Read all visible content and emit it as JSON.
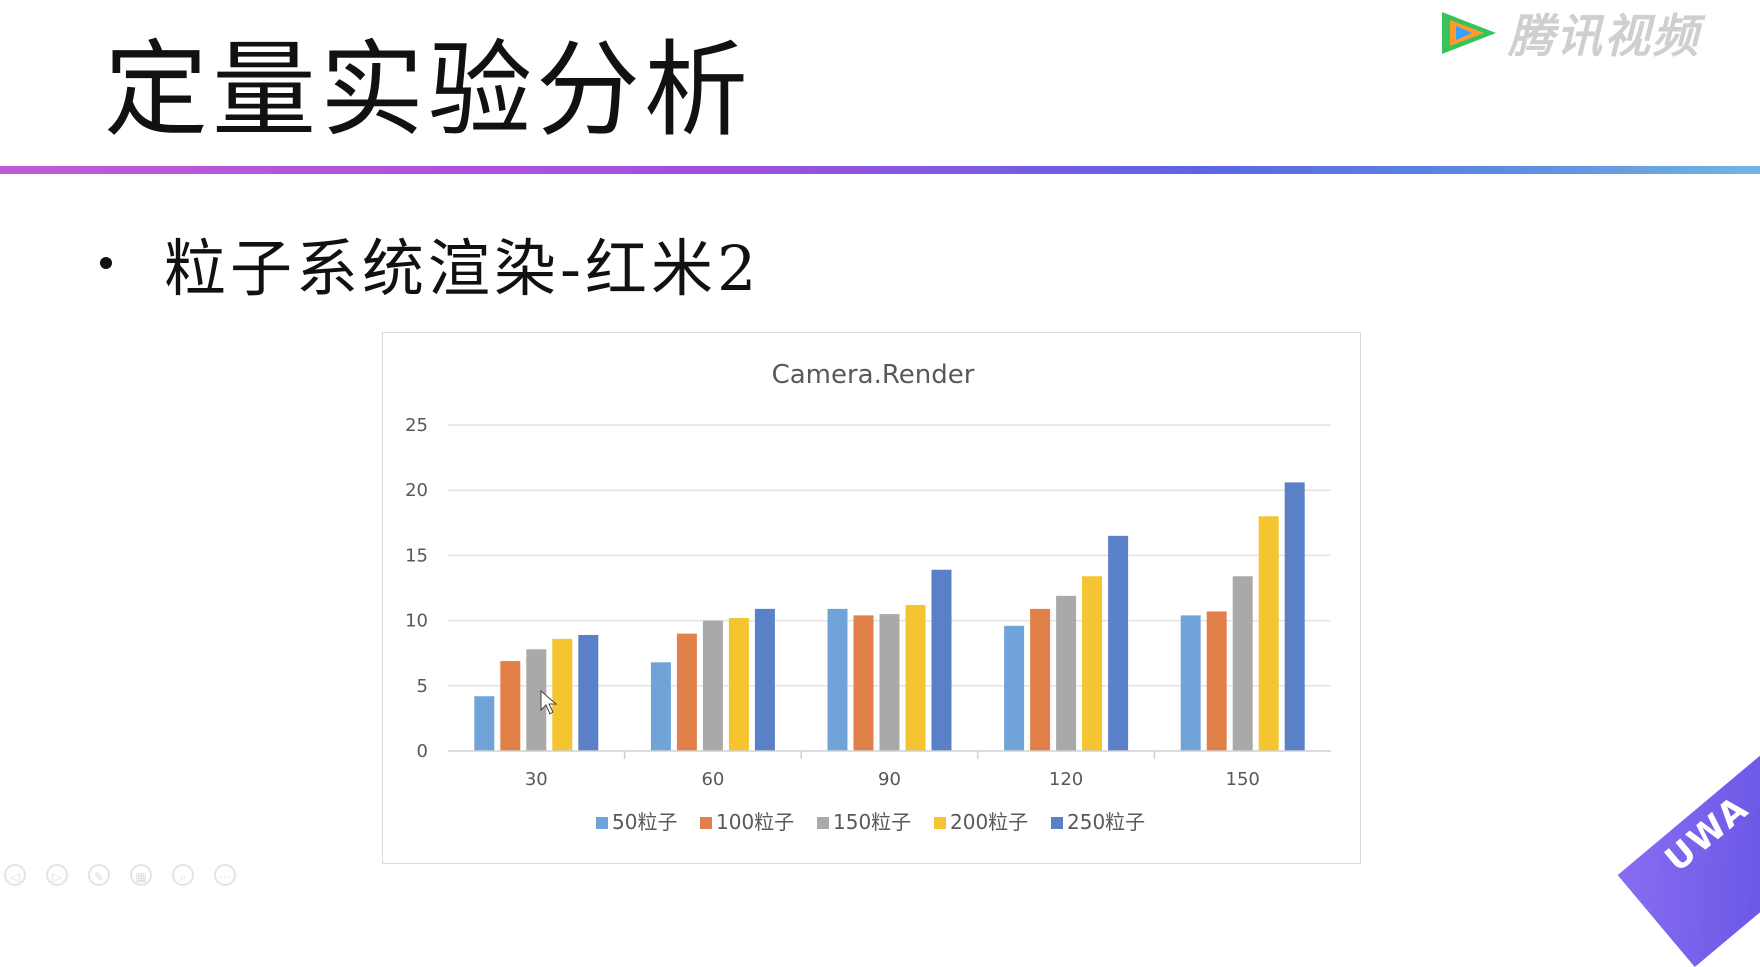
{
  "slide": {
    "title": "定量实验分析",
    "bullet": "粒子系统渲染-红米2"
  },
  "watermark": {
    "brand_text": "腾讯视频",
    "corner_text": "UWA"
  },
  "colors": {
    "title_rule_start": "#c15ad4",
    "title_rule_end": "#74b4e2"
  },
  "chart_data": {
    "type": "bar",
    "title": "Camera.Render",
    "xlabel": "",
    "ylabel": "",
    "categories": [
      "30",
      "60",
      "90",
      "120",
      "150"
    ],
    "ylim": [
      0,
      25
    ],
    "yticks": [
      0,
      5,
      10,
      15,
      20,
      25
    ],
    "grid": true,
    "legend_position": "bottom",
    "series": [
      {
        "name": "50粒子",
        "color": "#70a4d8",
        "values": [
          4.2,
          6.8,
          10.9,
          9.6,
          10.4
        ]
      },
      {
        "name": "100粒子",
        "color": "#e2804a",
        "values": [
          6.9,
          9.0,
          10.4,
          10.9,
          10.7
        ]
      },
      {
        "name": "150粒子",
        "color": "#a9a9a9",
        "values": [
          7.8,
          10.0,
          10.5,
          11.9,
          13.4
        ]
      },
      {
        "name": "200粒子",
        "color": "#f5c431",
        "values": [
          8.6,
          10.2,
          11.2,
          13.4,
          18.0
        ]
      },
      {
        "name": "250粒子",
        "color": "#5a80c8",
        "values": [
          8.9,
          10.9,
          13.9,
          16.5,
          20.6
        ]
      }
    ]
  }
}
